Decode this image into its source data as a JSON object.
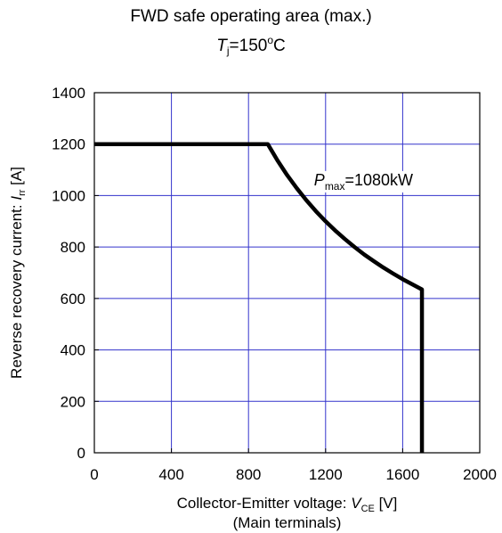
{
  "chart_data": {
    "type": "line",
    "title": "FWD safe operating area (max.)",
    "subtitle": {
      "symbol": "T",
      "subscript": "j",
      "value": "=150",
      "degree": "o",
      "unit": "C"
    },
    "xlabel": {
      "text": "Collector-Emitter voltage: ",
      "symbol": "V",
      "subscript": "CE",
      "unit": " [V]",
      "line2": "(Main terminals)"
    },
    "ylabel": {
      "text": "Reverse recovery current: ",
      "symbol": "I",
      "subscript": "rr",
      "unit": " [A]"
    },
    "xlim": [
      0,
      2000
    ],
    "ylim": [
      0,
      1400
    ],
    "x_ticks": [
      "0",
      "400",
      "800",
      "1200",
      "1600",
      "2000"
    ],
    "y_ticks": [
      "0",
      "200",
      "400",
      "600",
      "800",
      "1000",
      "1200",
      "1400"
    ],
    "grid": true,
    "grid_color": "#3333cc",
    "line_color": "#000000",
    "series": [
      {
        "points": [
          [
            0,
            1200
          ],
          [
            900,
            1200
          ],
          [
            950,
            1137
          ],
          [
            1000,
            1080
          ],
          [
            1050,
            1029
          ],
          [
            1100,
            982
          ],
          [
            1150,
            939
          ],
          [
            1200,
            900
          ],
          [
            1250,
            864
          ],
          [
            1300,
            831
          ],
          [
            1350,
            800
          ],
          [
            1400,
            771
          ],
          [
            1450,
            745
          ],
          [
            1500,
            720
          ],
          [
            1550,
            697
          ],
          [
            1600,
            675
          ],
          [
            1650,
            655
          ],
          [
            1700,
            635
          ],
          [
            1700,
            0
          ]
        ]
      }
    ],
    "annotation": {
      "symbol": "P",
      "subscript": "max",
      "text": "=1080kW"
    }
  }
}
